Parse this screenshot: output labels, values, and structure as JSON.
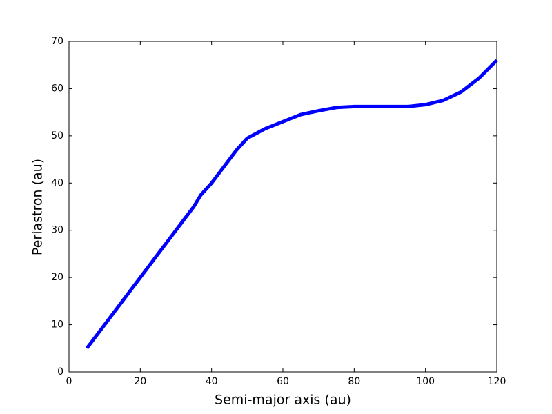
{
  "chart_data": {
    "type": "line",
    "xlabel": "Semi-major axis (au)",
    "ylabel": "Periastron (au)",
    "x": [
      5,
      10,
      15,
      20,
      25,
      30,
      35,
      37,
      40,
      43,
      47,
      50,
      55,
      60,
      65,
      70,
      75,
      80,
      85,
      90,
      95,
      100,
      105,
      110,
      115,
      120
    ],
    "values": [
      5,
      10,
      15,
      20,
      25,
      30,
      35,
      37.5,
      40,
      43,
      47,
      49.5,
      51.5,
      53,
      54.5,
      55.3,
      56,
      56.2,
      56.2,
      56.2,
      56.2,
      56.6,
      57.5,
      59.3,
      62.2,
      66
    ],
    "color": "#0000ff",
    "xlim": [
      0,
      120
    ],
    "xticks": [
      0,
      20,
      40,
      60,
      80,
      100,
      120
    ],
    "ylim": [
      0,
      70
    ],
    "yticks": [
      0,
      10,
      20,
      30,
      40,
      50,
      60,
      70
    ]
  }
}
